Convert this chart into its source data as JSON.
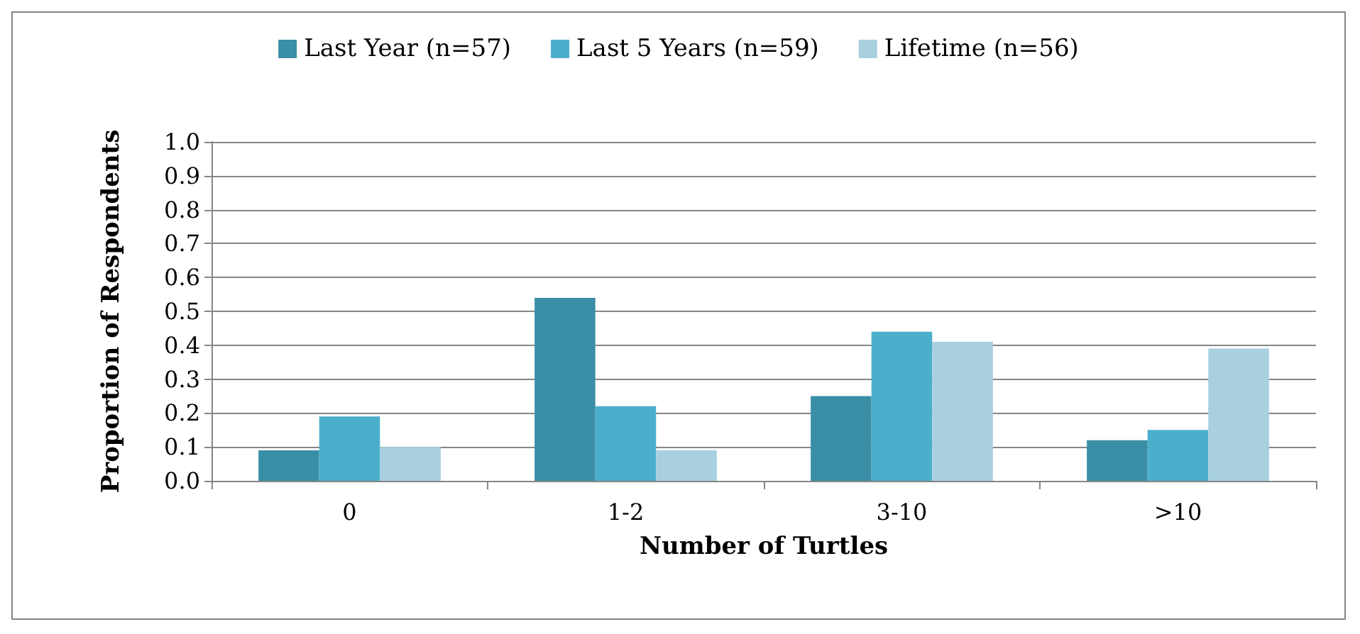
{
  "chart_data": {
    "type": "bar",
    "xlabel": "Number of Turtles",
    "ylabel": "Proportion of Respondents",
    "categories": [
      "0",
      "1-2",
      "3-10",
      ">10"
    ],
    "series": [
      {
        "name": "Last Year (n=57)",
        "color": "#3a8ea5",
        "values": [
          0.09,
          0.54,
          0.25,
          0.12
        ]
      },
      {
        "name": "Last 5 Years (n=59)",
        "color": "#4bafcc",
        "values": [
          0.19,
          0.22,
          0.44,
          0.15
        ]
      },
      {
        "name": "Lifetime (n=56)",
        "color": "#a8d0de",
        "values": [
          0.1,
          0.09,
          0.41,
          0.39
        ]
      }
    ],
    "ylim": [
      0,
      1
    ],
    "yticks": [
      {
        "value": 0,
        "label": "0.0"
      },
      0.1,
      0.2,
      0.3,
      0.4,
      0.5,
      0.6,
      0.7,
      0.8,
      0.9,
      {
        "value": 1,
        "label": "1.0"
      }
    ],
    "grid": "y",
    "legend": "top"
  }
}
